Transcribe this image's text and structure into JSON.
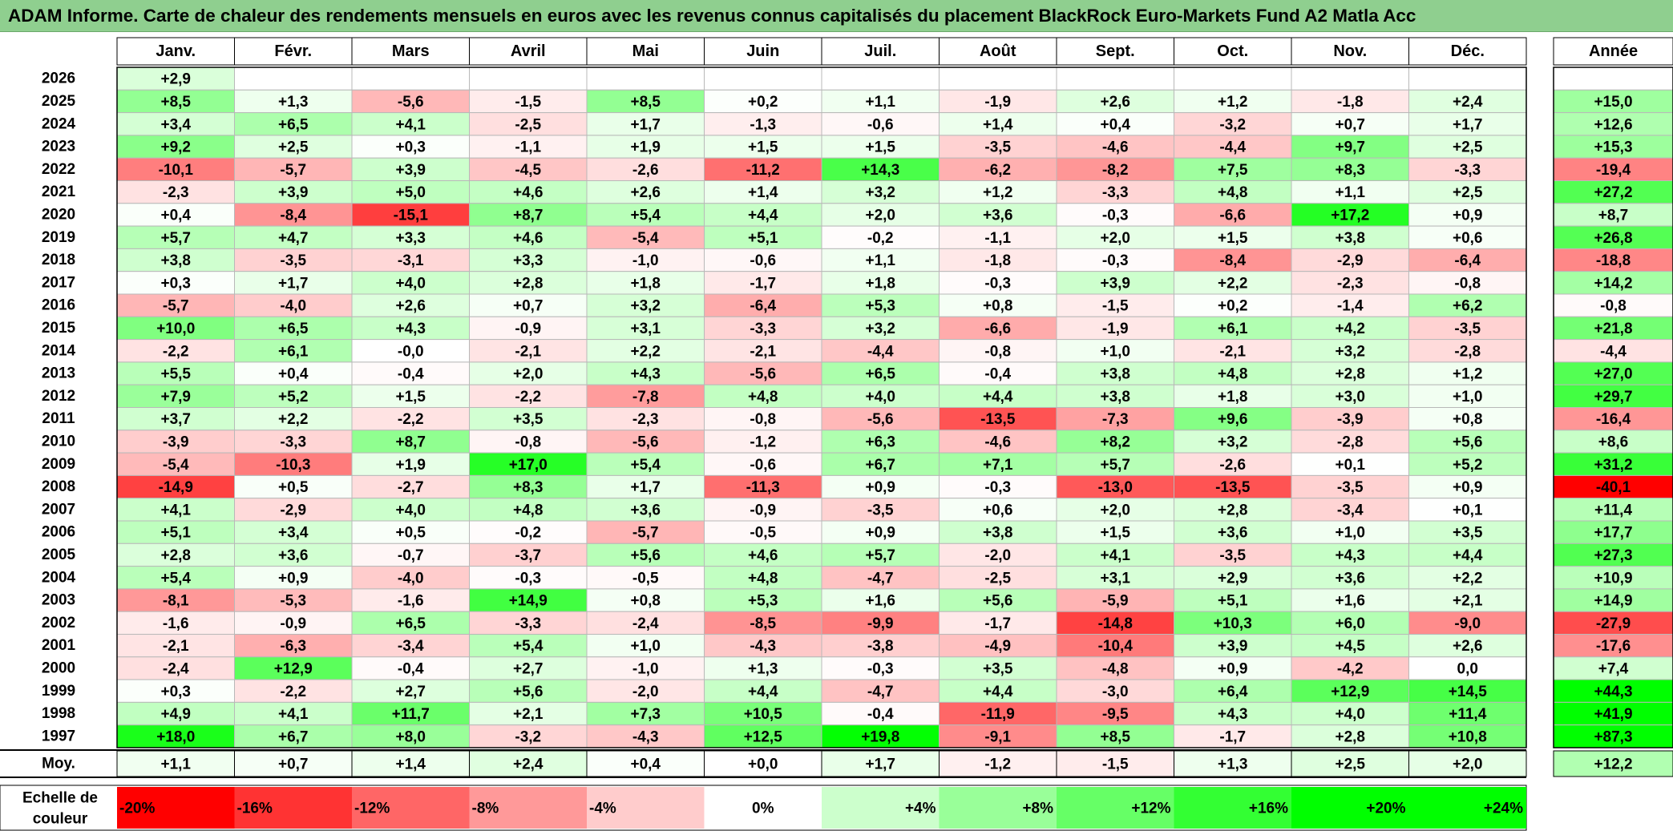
{
  "header": {
    "title": "ADAM Informe. Carte de chaleur des rendements mensuels en euros avec les revenus connus capitalisés du placement BlackRock Euro-Markets Fund A2 Matla Acc"
  },
  "colors": {
    "negative_max": "#ff0000",
    "neutral": "#ffffff",
    "positive_max": "#00ff00",
    "title_background": "#8fcf8f"
  },
  "chart_data": {
    "type": "heatmap",
    "columns": [
      "Janv.",
      "Févr.",
      "Mars",
      "Avril",
      "Mai",
      "Juin",
      "Juil.",
      "Août",
      "Sept.",
      "Oct.",
      "Nov.",
      "Déc."
    ],
    "annual_header": "Année",
    "rows": [
      {
        "year": "2026",
        "months": [
          "+2,9",
          null,
          null,
          null,
          null,
          null,
          null,
          null,
          null,
          null,
          null,
          null
        ],
        "annual": ""
      },
      {
        "year": "2025",
        "months": [
          "+8,5",
          "+1,3",
          "-5,6",
          "-1,5",
          "+8,5",
          "+0,2",
          "+1,1",
          "-1,9",
          "+2,6",
          "+1,2",
          "-1,8",
          "+2,4"
        ],
        "annual": "+15,0"
      },
      {
        "year": "2024",
        "months": [
          "+3,4",
          "+6,5",
          "+4,1",
          "-2,5",
          "+1,7",
          "-1,3",
          "-0,6",
          "+1,4",
          "+0,4",
          "-3,2",
          "+0,7",
          "+1,7"
        ],
        "annual": "+12,6"
      },
      {
        "year": "2023",
        "months": [
          "+9,2",
          "+2,5",
          "+0,3",
          "-1,1",
          "+1,9",
          "+1,5",
          "+1,5",
          "-3,5",
          "-4,6",
          "-4,4",
          "+9,7",
          "+2,5"
        ],
        "annual": "+15,3"
      },
      {
        "year": "2022",
        "months": [
          "-10,1",
          "-5,7",
          "+3,9",
          "-4,5",
          "-2,6",
          "-11,2",
          "+14,3",
          "-6,2",
          "-8,2",
          "+7,5",
          "+8,3",
          "-3,3"
        ],
        "annual": "-19,4"
      },
      {
        "year": "2021",
        "months": [
          "-2,3",
          "+3,9",
          "+5,0",
          "+4,6",
          "+2,6",
          "+1,4",
          "+3,2",
          "+1,2",
          "-3,3",
          "+4,8",
          "+1,1",
          "+2,5"
        ],
        "annual": "+27,2"
      },
      {
        "year": "2020",
        "months": [
          "+0,4",
          "-8,4",
          "-15,1",
          "+8,7",
          "+5,4",
          "+4,4",
          "+2,0",
          "+3,6",
          "-0,3",
          "-6,6",
          "+17,2",
          "+0,9"
        ],
        "annual": "+8,7"
      },
      {
        "year": "2019",
        "months": [
          "+5,7",
          "+4,7",
          "+3,3",
          "+4,6",
          "-5,4",
          "+5,1",
          "-0,2",
          "-1,1",
          "+2,0",
          "+1,5",
          "+3,8",
          "+0,6"
        ],
        "annual": "+26,8"
      },
      {
        "year": "2018",
        "months": [
          "+3,8",
          "-3,5",
          "-3,1",
          "+3,3",
          "-1,0",
          "-0,6",
          "+1,1",
          "-1,8",
          "-0,3",
          "-8,4",
          "-2,9",
          "-6,4"
        ],
        "annual": "-18,8"
      },
      {
        "year": "2017",
        "months": [
          "+0,3",
          "+1,7",
          "+4,0",
          "+2,8",
          "+1,8",
          "-1,7",
          "+1,8",
          "-0,3",
          "+3,9",
          "+2,2",
          "-2,3",
          "-0,8"
        ],
        "annual": "+14,2"
      },
      {
        "year": "2016",
        "months": [
          "-5,7",
          "-4,0",
          "+2,6",
          "+0,7",
          "+3,2",
          "-6,4",
          "+5,3",
          "+0,8",
          "-1,5",
          "+0,2",
          "-1,4",
          "+6,2"
        ],
        "annual": "-0,8"
      },
      {
        "year": "2015",
        "months": [
          "+10,0",
          "+6,5",
          "+4,3",
          "-0,9",
          "+3,1",
          "-3,3",
          "+3,2",
          "-6,6",
          "-1,9",
          "+6,1",
          "+4,2",
          "-3,5"
        ],
        "annual": "+21,8"
      },
      {
        "year": "2014",
        "months": [
          "-2,2",
          "+6,1",
          "-0,0",
          "-2,1",
          "+2,2",
          "-2,1",
          "-4,4",
          "-0,8",
          "+1,0",
          "-2,1",
          "+3,2",
          "-2,8"
        ],
        "annual": "-4,4"
      },
      {
        "year": "2013",
        "months": [
          "+5,5",
          "+0,4",
          "-0,4",
          "+2,0",
          "+4,3",
          "-5,6",
          "+6,5",
          "-0,4",
          "+3,8",
          "+4,8",
          "+2,8",
          "+1,2"
        ],
        "annual": "+27,0"
      },
      {
        "year": "2012",
        "months": [
          "+7,9",
          "+5,2",
          "+1,5",
          "-2,2",
          "-7,8",
          "+4,8",
          "+4,0",
          "+4,4",
          "+3,8",
          "+1,8",
          "+3,0",
          "+1,0"
        ],
        "annual": "+29,7"
      },
      {
        "year": "2011",
        "months": [
          "+3,7",
          "+2,2",
          "-2,2",
          "+3,5",
          "-2,3",
          "-0,8",
          "-5,6",
          "-13,5",
          "-7,3",
          "+9,6",
          "-3,9",
          "+0,8"
        ],
        "annual": "-16,4"
      },
      {
        "year": "2010",
        "months": [
          "-3,9",
          "-3,3",
          "+8,7",
          "-0,8",
          "-5,6",
          "-1,2",
          "+6,3",
          "-4,6",
          "+8,2",
          "+3,2",
          "-2,8",
          "+5,6"
        ],
        "annual": "+8,6"
      },
      {
        "year": "2009",
        "months": [
          "-5,4",
          "-10,3",
          "+1,9",
          "+17,0",
          "+5,4",
          "-0,6",
          "+6,7",
          "+7,1",
          "+5,7",
          "-2,6",
          "+0,1",
          "+5,2"
        ],
        "annual": "+31,2"
      },
      {
        "year": "2008",
        "months": [
          "-14,9",
          "+0,5",
          "-2,7",
          "+8,3",
          "+1,7",
          "-11,3",
          "+0,9",
          "-0,3",
          "-13,0",
          "-13,5",
          "-3,5",
          "+0,9"
        ],
        "annual": "-40,1"
      },
      {
        "year": "2007",
        "months": [
          "+4,1",
          "-2,9",
          "+4,0",
          "+4,8",
          "+3,6",
          "-0,9",
          "-3,5",
          "+0,6",
          "+2,0",
          "+2,8",
          "-3,4",
          "+0,1"
        ],
        "annual": "+11,4"
      },
      {
        "year": "2006",
        "months": [
          "+5,1",
          "+3,4",
          "+0,5",
          "-0,2",
          "-5,7",
          "-0,5",
          "+0,9",
          "+3,8",
          "+1,5",
          "+3,6",
          "+1,0",
          "+3,5"
        ],
        "annual": "+17,7"
      },
      {
        "year": "2005",
        "months": [
          "+2,8",
          "+3,6",
          "-0,7",
          "-3,7",
          "+5,6",
          "+4,6",
          "+5,7",
          "-2,0",
          "+4,1",
          "-3,5",
          "+4,3",
          "+4,4"
        ],
        "annual": "+27,3"
      },
      {
        "year": "2004",
        "months": [
          "+5,4",
          "+0,9",
          "-4,0",
          "-0,3",
          "-0,5",
          "+4,8",
          "-4,7",
          "-2,5",
          "+3,1",
          "+2,9",
          "+3,6",
          "+2,2"
        ],
        "annual": "+10,9"
      },
      {
        "year": "2003",
        "months": [
          "-8,1",
          "-5,3",
          "-1,6",
          "+14,9",
          "+0,8",
          "+5,3",
          "+1,6",
          "+5,6",
          "-5,9",
          "+5,1",
          "+1,6",
          "+2,1"
        ],
        "annual": "+14,9"
      },
      {
        "year": "2002",
        "months": [
          "-1,6",
          "-0,9",
          "+6,5",
          "-3,3",
          "-2,4",
          "-8,5",
          "-9,9",
          "-1,7",
          "-14,8",
          "+10,3",
          "+6,0",
          "-9,0"
        ],
        "annual": "-27,9"
      },
      {
        "year": "2001",
        "months": [
          "-2,1",
          "-6,3",
          "-3,4",
          "+5,4",
          "+1,0",
          "-4,3",
          "-3,8",
          "-4,9",
          "-10,4",
          "+3,9",
          "+4,5",
          "+2,6"
        ],
        "annual": "-17,6"
      },
      {
        "year": "2000",
        "months": [
          "-2,4",
          "+12,9",
          "-0,4",
          "+2,7",
          "-1,0",
          "+1,3",
          "-0,3",
          "+3,5",
          "-4,8",
          "+0,9",
          "-4,2",
          "0,0"
        ],
        "annual": "+7,4"
      },
      {
        "year": "1999",
        "months": [
          "+0,3",
          "-2,2",
          "+2,7",
          "+5,6",
          "-2,0",
          "+4,4",
          "-4,7",
          "+4,4",
          "-3,0",
          "+6,4",
          "+12,9",
          "+14,5"
        ],
        "annual": "+44,3"
      },
      {
        "year": "1998",
        "months": [
          "+4,9",
          "+4,1",
          "+11,7",
          "+2,1",
          "+7,3",
          "+10,5",
          "-0,4",
          "-11,9",
          "-9,5",
          "+4,3",
          "+4,0",
          "+11,4"
        ],
        "annual": "+41,9"
      },
      {
        "year": "1997",
        "months": [
          "+18,0",
          "+6,7",
          "+8,0",
          "-3,2",
          "-4,3",
          "+12,5",
          "+19,8",
          "-9,1",
          "+8,5",
          "-1,7",
          "+2,8",
          "+10,8"
        ],
        "annual": "+87,3"
      }
    ],
    "average": {
      "label": "Moy.",
      "months": [
        "+1,1",
        "+0,7",
        "+1,4",
        "+2,4",
        "+0,4",
        "+0,0",
        "+1,7",
        "-1,2",
        "-1,5",
        "+1,3",
        "+2,5",
        "+2,0"
      ],
      "annual": "+12,2"
    },
    "scale": {
      "label_line1": "Echelle de",
      "label_line2": "couleur",
      "steps": [
        {
          "label": "-20%",
          "value": -20
        },
        {
          "label": "-16%",
          "value": -16
        },
        {
          "label": "-12%",
          "value": -12
        },
        {
          "label": "-8%",
          "value": -8
        },
        {
          "label": "-4%",
          "value": -4
        },
        {
          "label": "0%",
          "value": 0
        },
        {
          "label": "+4%",
          "value": 4
        },
        {
          "label": "+8%",
          "value": 8
        },
        {
          "label": "+12%",
          "value": 12
        },
        {
          "label": "+16%",
          "value": 16
        },
        {
          "label": "+20%",
          "value": 20
        },
        {
          "label": "+24%",
          "value": 24
        }
      ]
    }
  }
}
